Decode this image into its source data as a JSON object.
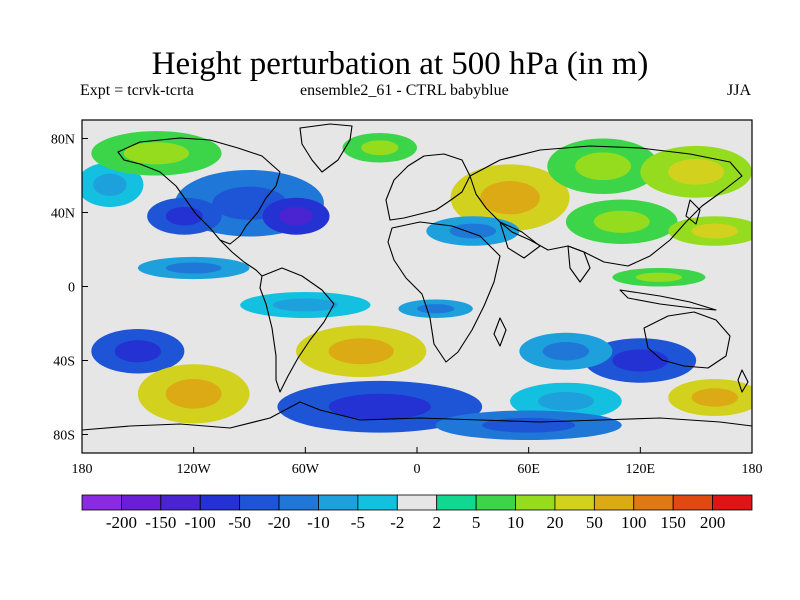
{
  "chart_data": {
    "type": "heatmap",
    "title": "Height perturbation at 500 hPa (in m)",
    "subtitle_left": "Expt = tcrvk-tcrta",
    "subtitle_center": "ensemble2_61 - CTRL babyblue",
    "subtitle_right": "JJA",
    "projection": "cylindrical-equidistant",
    "xlim": [
      -180,
      180
    ],
    "ylim": [
      -90,
      90
    ],
    "x_ticks": [
      {
        "value": -180,
        "label": "180"
      },
      {
        "value": -120,
        "label": "120W"
      },
      {
        "value": -60,
        "label": "60W"
      },
      {
        "value": 0,
        "label": "0"
      },
      {
        "value": 60,
        "label": "60E"
      },
      {
        "value": 120,
        "label": "120E"
      },
      {
        "value": 180,
        "label": "180"
      }
    ],
    "y_ticks": [
      {
        "value": 80,
        "label": "80N"
      },
      {
        "value": 40,
        "label": "40N"
      },
      {
        "value": 0,
        "label": "0"
      },
      {
        "value": -40,
        "label": "40S"
      },
      {
        "value": -80,
        "label": "80S"
      }
    ],
    "colorbar": {
      "colors": [
        "#8a2be2",
        "#6a1fd6",
        "#4b24d1",
        "#2432d4",
        "#1d55d6",
        "#1f78d8",
        "#1ea0dc",
        "#14c0e0",
        "#e6e6e6",
        "#10d890",
        "#3cd54a",
        "#96dc1e",
        "#d2d21e",
        "#dcaa14",
        "#e07814",
        "#e04a10",
        "#e01414"
      ],
      "levels": [
        "-200",
        "-150",
        "-100",
        "-50",
        "-20",
        "-10",
        "-5",
        "-2",
        "2",
        "5",
        "10",
        "20",
        "50",
        "100",
        "150",
        "200"
      ]
    },
    "regions": [
      {
        "lon": -165,
        "lat": 55,
        "rx": 18,
        "ry": 12,
        "level": 7
      },
      {
        "lon": -140,
        "lat": 72,
        "rx": 35,
        "ry": 12,
        "level": 10
      },
      {
        "lon": -90,
        "lat": 45,
        "rx": 40,
        "ry": 18,
        "level": 5
      },
      {
        "lon": -125,
        "lat": 38,
        "rx": 20,
        "ry": 10,
        "level": 4
      },
      {
        "lon": -65,
        "lat": 38,
        "rx": 18,
        "ry": 10,
        "level": 3
      },
      {
        "lon": -20,
        "lat": 75,
        "rx": 20,
        "ry": 8,
        "level": 10
      },
      {
        "lon": 50,
        "lat": 48,
        "rx": 32,
        "ry": 18,
        "level": 12
      },
      {
        "lon": 100,
        "lat": 65,
        "rx": 30,
        "ry": 15,
        "level": 10
      },
      {
        "lon": 110,
        "lat": 35,
        "rx": 30,
        "ry": 12,
        "level": 10
      },
      {
        "lon": 160,
        "lat": 30,
        "rx": 25,
        "ry": 8,
        "level": 11
      },
      {
        "lon": 150,
        "lat": 62,
        "rx": 30,
        "ry": 14,
        "level": 11
      },
      {
        "lon": 30,
        "lat": 30,
        "rx": 25,
        "ry": 8,
        "level": 6
      },
      {
        "lon": -120,
        "lat": 10,
        "rx": 30,
        "ry": 6,
        "level": 6
      },
      {
        "lon": -60,
        "lat": -10,
        "rx": 35,
        "ry": 7,
        "level": 7
      },
      {
        "lon": 10,
        "lat": -12,
        "rx": 20,
        "ry": 5,
        "level": 6
      },
      {
        "lon": 130,
        "lat": 5,
        "rx": 25,
        "ry": 5,
        "level": 10
      },
      {
        "lon": -150,
        "lat": -35,
        "rx": 25,
        "ry": 12,
        "level": 4
      },
      {
        "lon": -30,
        "lat": -35,
        "rx": 35,
        "ry": 14,
        "level": 12
      },
      {
        "lon": 120,
        "lat": -40,
        "rx": 30,
        "ry": 12,
        "level": 4
      },
      {
        "lon": 80,
        "lat": -35,
        "rx": 25,
        "ry": 10,
        "level": 6
      },
      {
        "lon": -120,
        "lat": -58,
        "rx": 30,
        "ry": 16,
        "level": 12
      },
      {
        "lon": -20,
        "lat": -65,
        "rx": 55,
        "ry": 14,
        "level": 4
      },
      {
        "lon": 80,
        "lat": -62,
        "rx": 30,
        "ry": 10,
        "level": 7
      },
      {
        "lon": 160,
        "lat": -60,
        "rx": 25,
        "ry": 10,
        "level": 12
      },
      {
        "lon": 60,
        "lat": -75,
        "rx": 50,
        "ry": 8,
        "level": 5
      }
    ]
  }
}
